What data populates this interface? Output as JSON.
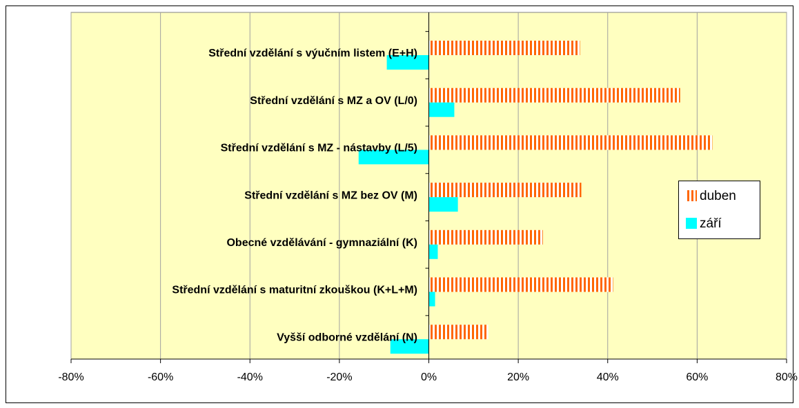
{
  "chart_data": {
    "type": "hbar",
    "categories": [
      "Střední vzdělání s výučním listem (E+H)",
      "Střední vzdělání s MZ a OV (L/0)",
      "Střední vzdělání s MZ - nástavby (L/5)",
      "Střední vzdělání s MZ bez OV (M)",
      "Obecné vzdělávání - gymnaziální (K)",
      "Střední vzdělání s maturitní zkouškou (K+L+M)",
      "Vyšší odborné vzdělání (N)"
    ],
    "series": [
      {
        "name": "duben",
        "color": "#ff6600",
        "values": [
          33.8,
          56.2,
          63.4,
          34.1,
          25.5,
          41.2,
          13.3
        ]
      },
      {
        "name": "září",
        "color": "#00ffff",
        "values": [
          -9.4,
          5.7,
          -15.7,
          6.5,
          2.0,
          1.4,
          -8.6
        ]
      }
    ],
    "xlim": [
      -80,
      80
    ],
    "xticks": [
      {
        "value": -80,
        "label": "-80%"
      },
      {
        "value": -60,
        "label": "-60%"
      },
      {
        "value": -40,
        "label": "-40%"
      },
      {
        "value": -20,
        "label": "-20%"
      },
      {
        "value": 0,
        "label": "0%"
      },
      {
        "value": 20,
        "label": "20%"
      },
      {
        "value": 40,
        "label": "40%"
      },
      {
        "value": 60,
        "label": "60%"
      },
      {
        "value": 80,
        "label": "80%"
      }
    ],
    "grid": true,
    "legend": "right",
    "background": "#ffffc0"
  }
}
